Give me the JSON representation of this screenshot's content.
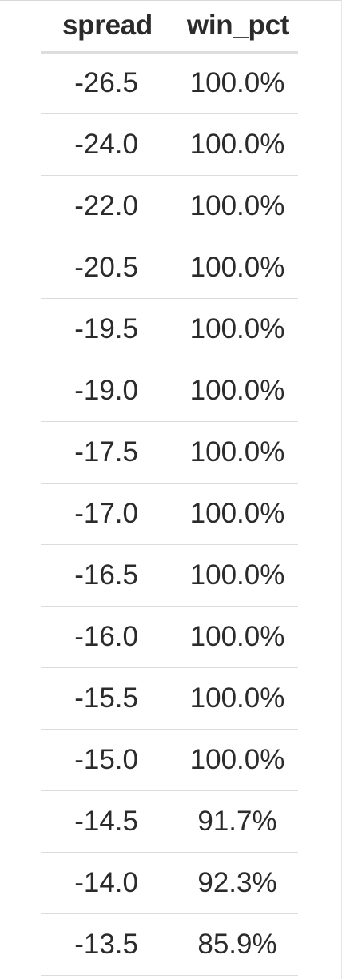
{
  "table": {
    "headers": [
      "spread",
      "win_pct"
    ],
    "rows": [
      [
        "-26.5",
        "100.0%"
      ],
      [
        "-24.0",
        "100.0%"
      ],
      [
        "-22.0",
        "100.0%"
      ],
      [
        "-20.5",
        "100.0%"
      ],
      [
        "-19.5",
        "100.0%"
      ],
      [
        "-19.0",
        "100.0%"
      ],
      [
        "-17.5",
        "100.0%"
      ],
      [
        "-17.0",
        "100.0%"
      ],
      [
        "-16.5",
        "100.0%"
      ],
      [
        "-16.0",
        "100.0%"
      ],
      [
        "-15.5",
        "100.0%"
      ],
      [
        "-15.0",
        "100.0%"
      ],
      [
        "-14.5",
        "91.7%"
      ],
      [
        "-14.0",
        "92.3%"
      ],
      [
        "-13.5",
        "85.9%"
      ]
    ]
  }
}
